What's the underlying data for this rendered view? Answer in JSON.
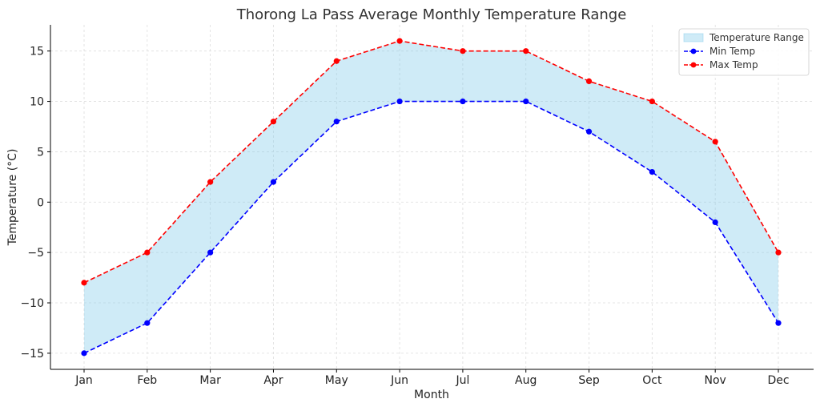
{
  "chart_data": {
    "type": "line",
    "title": "Thorong La Pass Average Monthly Temperature Range",
    "xlabel": "Month",
    "ylabel": "Temperature (°C)",
    "categories": [
      "Jan",
      "Feb",
      "Mar",
      "Apr",
      "May",
      "Jun",
      "Jul",
      "Aug",
      "Sep",
      "Oct",
      "Nov",
      "Dec"
    ],
    "yticks": [
      -15,
      -10,
      -5,
      0,
      5,
      10,
      15
    ],
    "ylim": [
      -16.6,
      17.6
    ],
    "grid": true,
    "legend_position": "top-right",
    "fill_between": {
      "name": "Temperature Range",
      "color": "#87ceeb",
      "lower_series": "Min Temp",
      "upper_series": "Max Temp"
    },
    "series": [
      {
        "name": "Min Temp",
        "color": "#0000ff",
        "style": "dashed",
        "marker": "circle",
        "values": [
          -15,
          -12,
          -5,
          2,
          8,
          10,
          10,
          10,
          7,
          3,
          -2,
          -12
        ]
      },
      {
        "name": "Max Temp",
        "color": "#ff0000",
        "style": "dashed",
        "marker": "circle",
        "values": [
          -8,
          -5,
          2,
          8,
          14,
          16,
          15,
          15,
          12,
          10,
          6,
          -5
        ]
      }
    ]
  }
}
